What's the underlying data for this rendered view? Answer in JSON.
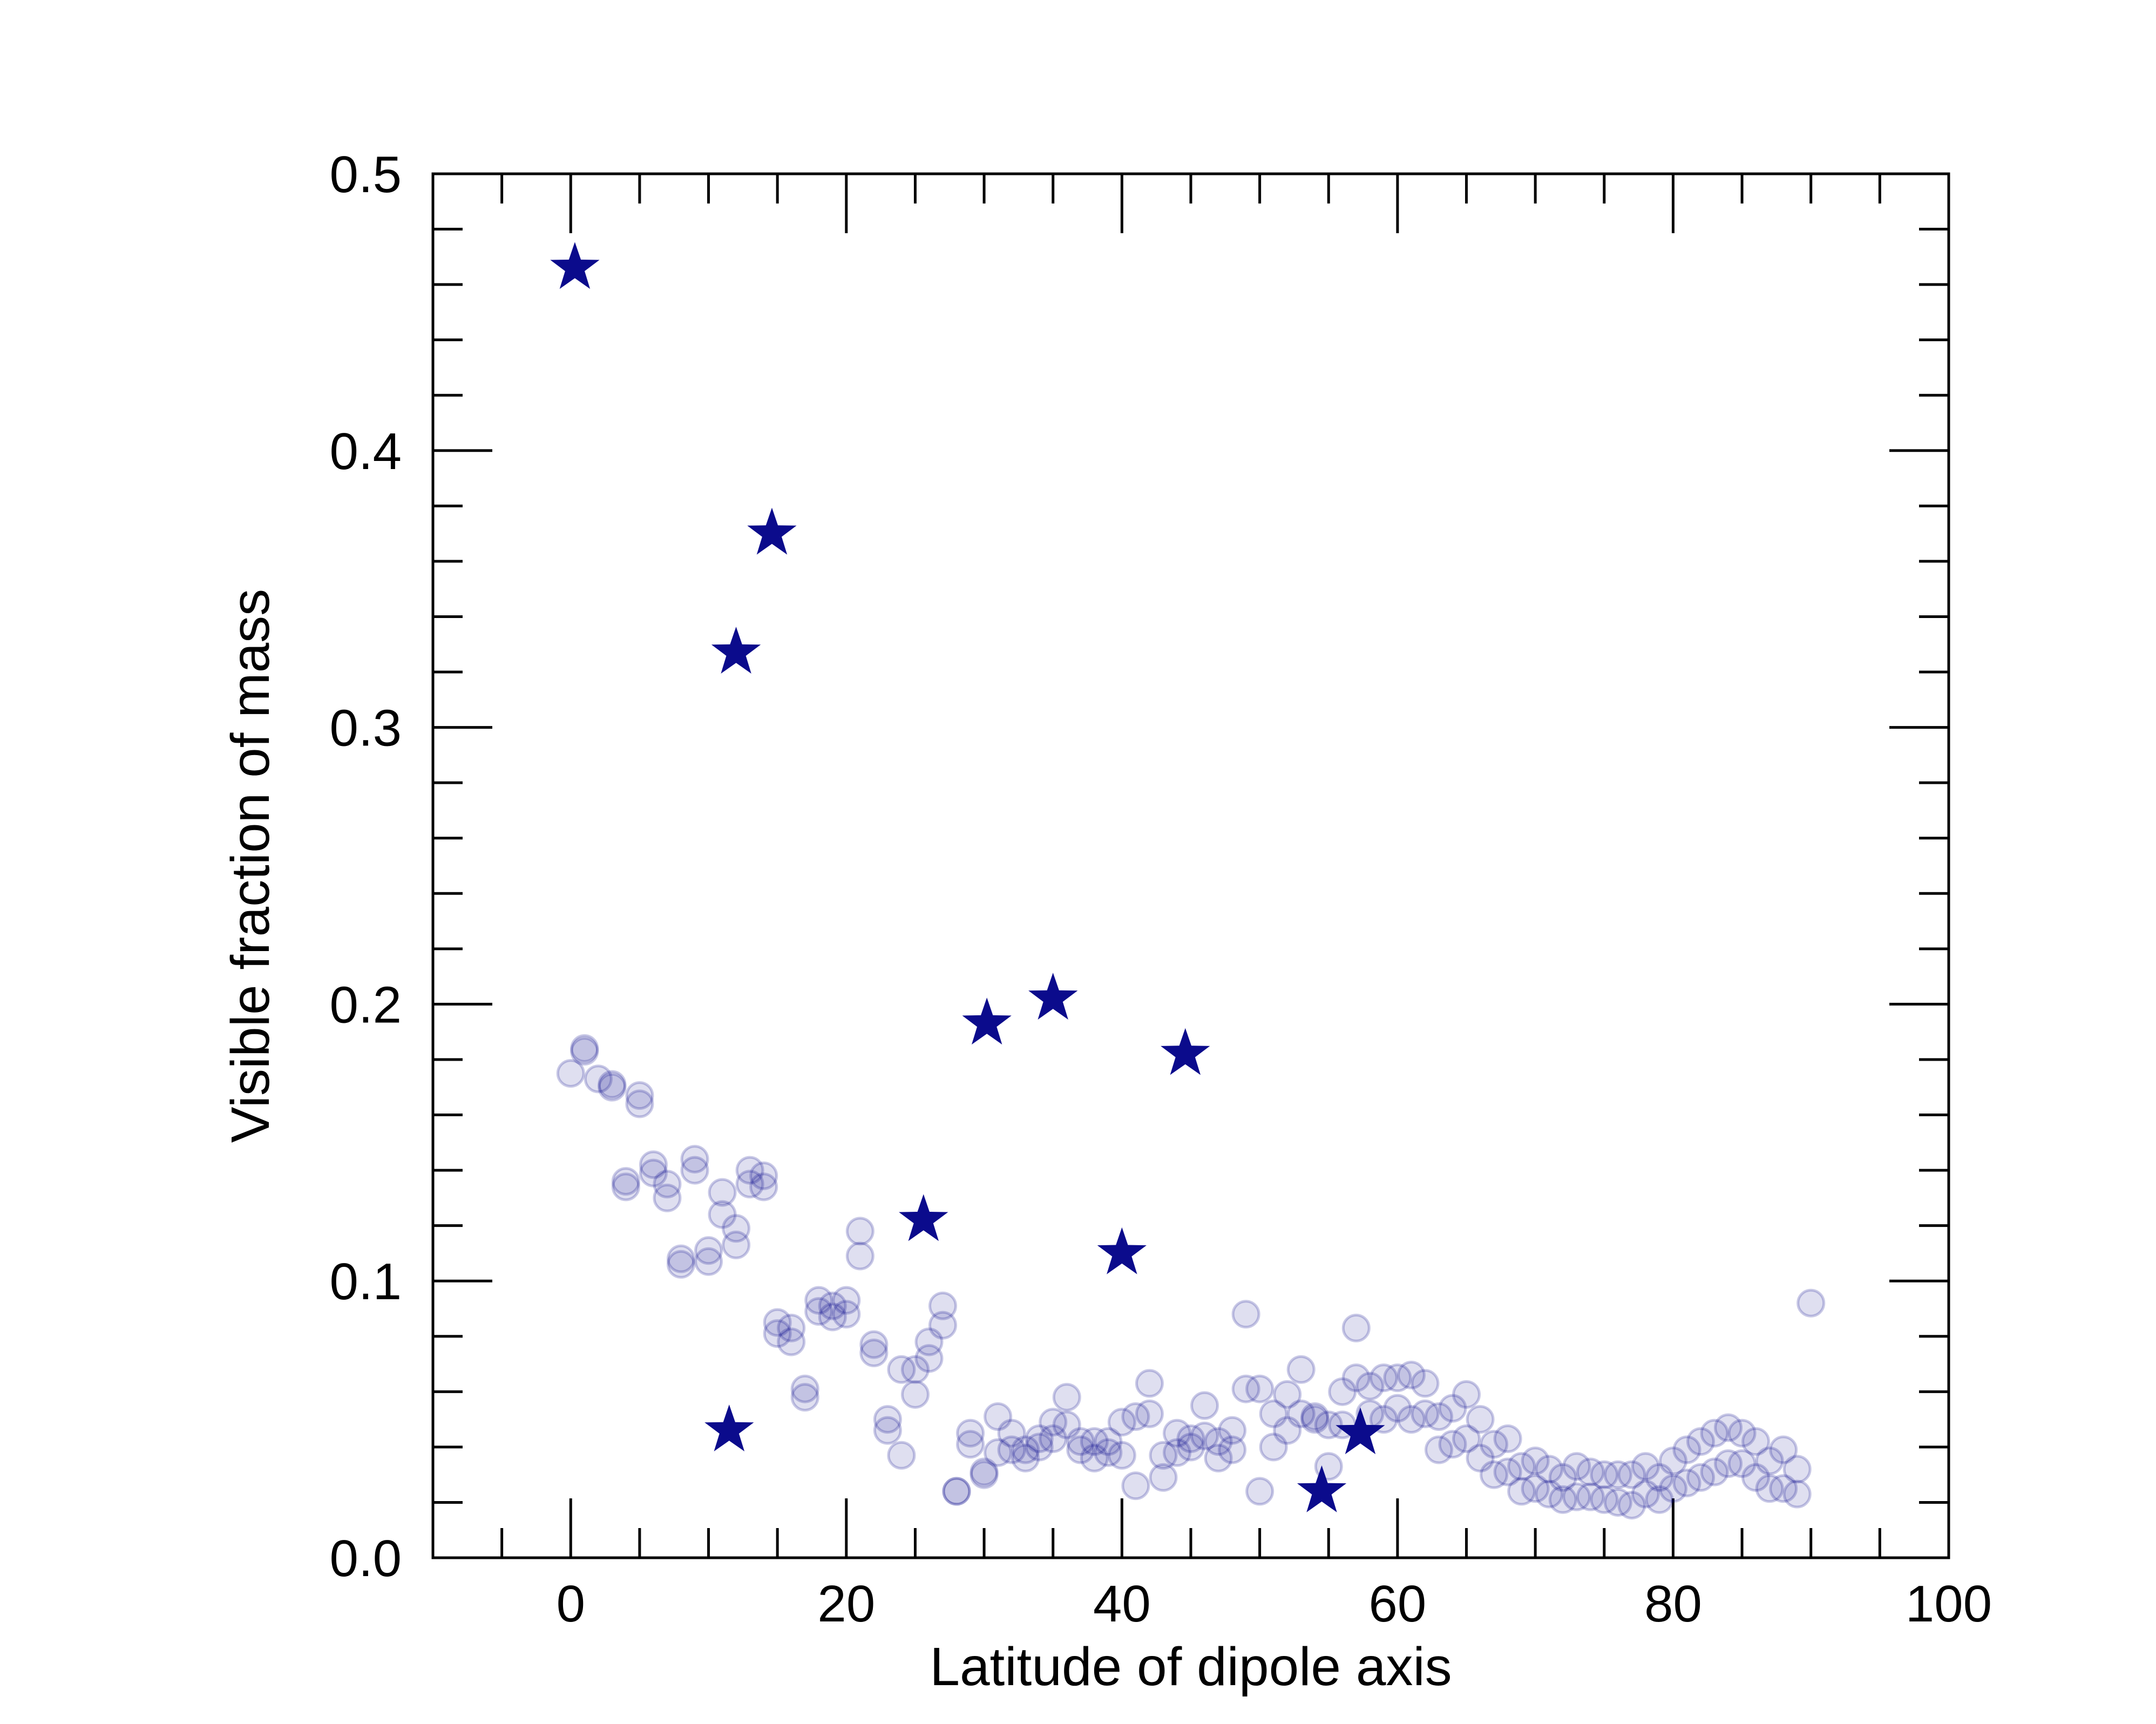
{
  "chart_data": {
    "type": "scatter",
    "xlabel": "Latitude of dipole axis",
    "ylabel": "Visible fraction of mass",
    "xlim": [
      -10,
      100
    ],
    "ylim": [
      0.0,
      0.5
    ],
    "x_ticks": [
      "0",
      "20",
      "40",
      "60",
      "80",
      "100"
    ],
    "y_ticks": [
      "0.0",
      "0.1",
      "0.2",
      "0.3",
      "0.4",
      "0.5"
    ],
    "grid": false,
    "legend": "none",
    "colors": {
      "marker": "#0b0b8c",
      "axis": "#000000"
    },
    "series": [
      {
        "marker": "circle",
        "style": "translucent",
        "points": [
          [
            0,
            0.175
          ],
          [
            1,
            0.184
          ],
          [
            1,
            0.183
          ],
          [
            2,
            0.173
          ],
          [
            3,
            0.171
          ],
          [
            3,
            0.17
          ],
          [
            5,
            0.167
          ],
          [
            5,
            0.164
          ],
          [
            4,
            0.136
          ],
          [
            4,
            0.134
          ],
          [
            6,
            0.142
          ],
          [
            6,
            0.139
          ],
          [
            7,
            0.135
          ],
          [
            7,
            0.13
          ],
          [
            9,
            0.144
          ],
          [
            9,
            0.14
          ],
          [
            8,
            0.108
          ],
          [
            8,
            0.106
          ],
          [
            10,
            0.111
          ],
          [
            10,
            0.107
          ],
          [
            11,
            0.132
          ],
          [
            11,
            0.124
          ],
          [
            12,
            0.119
          ],
          [
            12,
            0.113
          ],
          [
            13,
            0.14
          ],
          [
            13,
            0.135
          ],
          [
            14,
            0.138
          ],
          [
            14,
            0.134
          ],
          [
            15,
            0.085
          ],
          [
            15,
            0.081
          ],
          [
            16,
            0.083
          ],
          [
            16,
            0.078
          ],
          [
            17,
            0.061
          ],
          [
            17,
            0.058
          ],
          [
            18,
            0.093
          ],
          [
            18,
            0.089
          ],
          [
            19,
            0.091
          ],
          [
            19,
            0.087
          ],
          [
            20,
            0.093
          ],
          [
            20,
            0.088
          ],
          [
            21,
            0.118
          ],
          [
            21,
            0.109
          ],
          [
            22,
            0.077
          ],
          [
            22,
            0.074
          ],
          [
            23,
            0.05
          ],
          [
            23,
            0.046
          ],
          [
            24,
            0.068
          ],
          [
            24,
            0.037
          ],
          [
            25,
            0.068
          ],
          [
            25,
            0.059
          ],
          [
            26,
            0.078
          ],
          [
            26,
            0.072
          ],
          [
            27,
            0.091
          ],
          [
            27,
            0.084
          ],
          [
            28,
            0.024
          ],
          [
            28,
            0.024
          ],
          [
            29,
            0.045
          ],
          [
            29,
            0.041
          ],
          [
            30,
            0.031
          ],
          [
            30,
            0.03
          ],
          [
            31,
            0.051
          ],
          [
            31,
            0.038
          ],
          [
            32,
            0.045
          ],
          [
            32,
            0.039
          ],
          [
            33,
            0.039
          ],
          [
            33,
            0.036
          ],
          [
            34,
            0.043
          ],
          [
            34,
            0.04
          ],
          [
            35,
            0.049
          ],
          [
            35,
            0.043
          ],
          [
            36,
            0.058
          ],
          [
            36,
            0.048
          ],
          [
            37,
            0.042
          ],
          [
            37,
            0.039
          ],
          [
            38,
            0.042
          ],
          [
            38,
            0.036
          ],
          [
            39,
            0.042
          ],
          [
            39,
            0.038
          ],
          [
            40,
            0.049
          ],
          [
            40,
            0.037
          ],
          [
            41,
            0.051
          ],
          [
            41,
            0.026
          ],
          [
            42,
            0.063
          ],
          [
            42,
            0.052
          ],
          [
            43,
            0.037
          ],
          [
            43,
            0.029
          ],
          [
            44,
            0.045
          ],
          [
            44,
            0.038
          ],
          [
            45,
            0.043
          ],
          [
            45,
            0.04
          ],
          [
            46,
            0.055
          ],
          [
            46,
            0.044
          ],
          [
            47,
            0.042
          ],
          [
            47,
            0.036
          ],
          [
            48,
            0.046
          ],
          [
            48,
            0.039
          ],
          [
            49,
            0.088
          ],
          [
            49,
            0.061
          ],
          [
            50,
            0.061
          ],
          [
            50,
            0.024
          ],
          [
            51,
            0.052
          ],
          [
            51,
            0.04
          ],
          [
            52,
            0.059
          ],
          [
            52,
            0.046
          ],
          [
            53,
            0.068
          ],
          [
            53,
            0.052
          ],
          [
            54,
            0.051
          ],
          [
            54,
            0.05
          ],
          [
            55,
            0.048
          ],
          [
            55,
            0.033
          ],
          [
            56,
            0.06
          ],
          [
            56,
            0.048
          ],
          [
            57,
            0.083
          ],
          [
            57,
            0.065
          ],
          [
            58,
            0.062
          ],
          [
            58,
            0.052
          ],
          [
            59,
            0.065
          ],
          [
            59,
            0.05
          ],
          [
            60,
            0.065
          ],
          [
            60,
            0.054
          ],
          [
            61,
            0.066
          ],
          [
            61,
            0.05
          ],
          [
            62,
            0.063
          ],
          [
            62,
            0.052
          ],
          [
            63,
            0.051
          ],
          [
            63,
            0.039
          ],
          [
            64,
            0.054
          ],
          [
            64,
            0.041
          ],
          [
            65,
            0.059
          ],
          [
            65,
            0.043
          ],
          [
            66,
            0.05
          ],
          [
            66,
            0.036
          ],
          [
            67,
            0.041
          ],
          [
            67,
            0.03
          ],
          [
            68,
            0.043
          ],
          [
            68,
            0.031
          ],
          [
            69,
            0.033
          ],
          [
            69,
            0.024
          ],
          [
            70,
            0.035
          ],
          [
            70,
            0.025
          ],
          [
            71,
            0.032
          ],
          [
            71,
            0.023
          ],
          [
            72,
            0.029
          ],
          [
            72,
            0.021
          ],
          [
            73,
            0.033
          ],
          [
            73,
            0.022
          ],
          [
            74,
            0.031
          ],
          [
            74,
            0.022
          ],
          [
            75,
            0.03
          ],
          [
            75,
            0.021
          ],
          [
            76,
            0.03
          ],
          [
            76,
            0.02
          ],
          [
            77,
            0.03
          ],
          [
            77,
            0.019
          ],
          [
            78,
            0.033
          ],
          [
            78,
            0.023
          ],
          [
            79,
            0.029
          ],
          [
            79,
            0.021
          ],
          [
            80,
            0.035
          ],
          [
            80,
            0.025
          ],
          [
            81,
            0.039
          ],
          [
            81,
            0.027
          ],
          [
            82,
            0.042
          ],
          [
            82,
            0.029
          ],
          [
            83,
            0.045
          ],
          [
            83,
            0.031
          ],
          [
            84,
            0.047
          ],
          [
            84,
            0.034
          ],
          [
            85,
            0.045
          ],
          [
            85,
            0.034
          ],
          [
            86,
            0.042
          ],
          [
            86,
            0.029
          ],
          [
            87,
            0.035
          ],
          [
            87,
            0.025
          ],
          [
            88,
            0.039
          ],
          [
            88,
            0.025
          ],
          [
            89,
            0.032
          ],
          [
            89,
            0.023
          ],
          [
            90,
            0.092
          ]
        ]
      },
      {
        "marker": "star",
        "style": "solid",
        "points": [
          [
            0.3,
            0.466
          ],
          [
            14.6,
            0.37
          ],
          [
            12.0,
            0.327
          ],
          [
            35.0,
            0.202
          ],
          [
            30.2,
            0.193
          ],
          [
            44.6,
            0.182
          ],
          [
            25.6,
            0.122
          ],
          [
            40.0,
            0.11
          ],
          [
            11.5,
            0.046
          ],
          [
            57.3,
            0.045
          ],
          [
            54.5,
            0.024
          ]
        ]
      }
    ]
  }
}
